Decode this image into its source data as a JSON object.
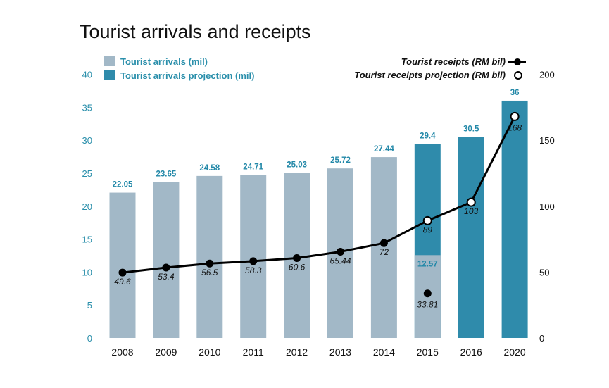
{
  "chart_data": {
    "type": "bar",
    "title": "Tourist arrivals and receipts",
    "categories": [
      "2008",
      "2009",
      "2010",
      "2011",
      "2012",
      "2013",
      "2014",
      "2015",
      "2016",
      "2020"
    ],
    "left_axis": {
      "ticks": [
        0,
        5,
        10,
        15,
        20,
        25,
        30,
        35,
        40
      ],
      "ylim": [
        0,
        40
      ],
      "color": "#2a8fab"
    },
    "right_axis": {
      "ticks": [
        0,
        50,
        100,
        150,
        200
      ],
      "ylim": [
        0,
        200
      ],
      "color": "#111111"
    },
    "colors": {
      "arrivals": "#a2b8c7",
      "projection": "#2f8bab",
      "bar_label": "#2288a8",
      "line": "#000000"
    },
    "legend_left": [
      {
        "label": "Tourist arrivals (mil)",
        "color": "#a2b8c7"
      },
      {
        "label": "Tourist arrivals projection (mil)",
        "color": "#2f8bab"
      }
    ],
    "legend_right": [
      {
        "label": "Tourist receipts (RM bil)",
        "marker": "filled"
      },
      {
        "label": "Tourist receipts projection (RM bil)",
        "marker": "open"
      }
    ],
    "bars": [
      {
        "year": "2008",
        "arrivals": 22.05,
        "projection": null,
        "label": "22.05"
      },
      {
        "year": "2009",
        "arrivals": 23.65,
        "projection": null,
        "label": "23.65"
      },
      {
        "year": "2010",
        "arrivals": 24.58,
        "projection": null,
        "label": "24.58"
      },
      {
        "year": "2011",
        "arrivals": 24.71,
        "projection": null,
        "label": "24.71"
      },
      {
        "year": "2012",
        "arrivals": 25.03,
        "projection": null,
        "label": "25.03"
      },
      {
        "year": "2013",
        "arrivals": 25.72,
        "projection": null,
        "label": "25.72"
      },
      {
        "year": "2014",
        "arrivals": 27.44,
        "projection": null,
        "label": "27.44"
      },
      {
        "year": "2015",
        "arrivals": 12.57,
        "projection": 29.4,
        "label": "29.4",
        "inner_label": "12.57"
      },
      {
        "year": "2016",
        "arrivals": null,
        "projection": 30.5,
        "label": "30.5"
      },
      {
        "year": "2020",
        "arrivals": null,
        "projection": 36,
        "label": "36"
      }
    ],
    "receipts": [
      {
        "year": "2008",
        "value": 49.6,
        "label": "49.6",
        "projected": false
      },
      {
        "year": "2009",
        "value": 53.4,
        "label": "53.4",
        "projected": false
      },
      {
        "year": "2010",
        "value": 56.5,
        "label": "56.5",
        "projected": false
      },
      {
        "year": "2011",
        "value": 58.3,
        "label": "58.3",
        "projected": false
      },
      {
        "year": "2012",
        "value": 60.6,
        "label": "60.6",
        "projected": false
      },
      {
        "year": "2013",
        "value": 65.44,
        "label": "65.44",
        "projected": false
      },
      {
        "year": "2014",
        "value": 72,
        "label": "72",
        "projected": false
      },
      {
        "year": "2015",
        "value": 89,
        "label": "89",
        "projected": true
      },
      {
        "year": "2016",
        "value": 103,
        "label": "103",
        "projected": true
      },
      {
        "year": "2020",
        "value": 168,
        "label": "168",
        "projected": true
      }
    ],
    "receipts_2015_actual": {
      "value": 33.81,
      "label": "33.81"
    }
  }
}
